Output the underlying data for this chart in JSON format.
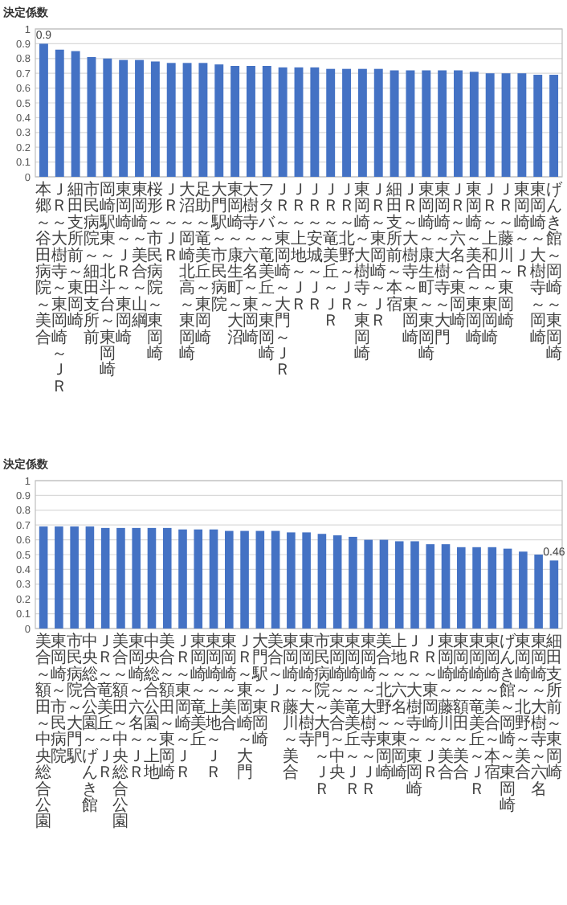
{
  "chart_data": [
    {
      "type": "bar",
      "ylabel": "決定係数",
      "categories": [
        "本郷～谷田病院～美合",
        "ＪＲ～大樹寺～東岡崎～ＪＲ",
        "細田支所前～東岡崎",
        "市民病院～細田支所前",
        "岡崎駅東～北斗台～東岡崎",
        "東岡崎～ＪＲ～東岡崎",
        "東岡崎～美合～山綱",
        "桜形～市民病院～東岡崎",
        "ＪＲ～ＪＲ",
        "大沼～岡崎北高～東岡崎",
        "足助～竜美丘～東岡崎",
        "大門駅～市民病院",
        "東岡崎～康生町～大沼",
        "大樹寺～六名～東岡崎",
        "フタバ～竜美丘～東岡崎",
        "ＪＲ～東岡崎～大門～ＪＲ",
        "ＪＲ～上地～ＪＲ",
        "ＪＲ～安城～ＪＲ",
        "ＪＲ～竜美丘～ＪＲ",
        "ＪＲ～北野～ＪＲ",
        "東岡崎～大樹寺～東岡崎",
        "ＪＲ～東岡崎～ＪＲ",
        "細田支所前～本宿",
        "ＪＲ～大樹寺～東岡崎",
        "東岡崎～康生町～東岡崎",
        "東岡崎～大樹寺～大門",
        "ＪＲ～六名～東岡崎",
        "東岡崎～美合～東岡崎",
        "ＪＲ～上和田～東岡崎",
        "ＪＲ～藤川～東岡崎",
        "東岡崎～ＪＲ",
        "東岡崎～大樹寺～岡崎",
        "げんき館～岡崎～東岡崎"
      ],
      "values": [
        0.9,
        0.86,
        0.85,
        0.81,
        0.8,
        0.79,
        0.79,
        0.78,
        0.77,
        0.77,
        0.77,
        0.76,
        0.75,
        0.75,
        0.75,
        0.74,
        0.74,
        0.74,
        0.73,
        0.73,
        0.73,
        0.73,
        0.72,
        0.72,
        0.72,
        0.72,
        0.72,
        0.71,
        0.7,
        0.7,
        0.7,
        0.69,
        0.69
      ],
      "value_labels": [
        "0.9",
        null,
        null,
        null,
        null,
        null,
        null,
        null,
        null,
        null,
        null,
        null,
        null,
        null,
        null,
        null,
        null,
        null,
        null,
        null,
        null,
        null,
        null,
        null,
        null,
        null,
        null,
        null,
        null,
        null,
        null,
        null,
        null
      ],
      "color": "#4472c4",
      "ylim": [
        0,
        1
      ],
      "yticks": [
        0,
        0.1,
        0.2,
        0.3,
        0.4,
        0.5,
        0.6,
        0.7,
        0.8,
        0.9,
        1
      ],
      "grid": "y"
    },
    {
      "type": "bar",
      "ylabel": "決定係数",
      "categories": [
        "美合～額田～中央総合公園",
        "東岡崎～市民病院",
        "市民病院～大門駅",
        "中央総合公園～げんき館",
        "ＪＲ～竜美丘～ＪＲ",
        "美合～額田～中央総合公園",
        "東岡崎～六名～ＪＲ",
        "中央総合公園～上地",
        "美合～額田～東岡崎",
        "ＪＲ～東岡崎～ＪＲ",
        "東岡崎～竜美丘",
        "東岡崎～上地～ＪＲ",
        "東岡崎～美合",
        "ＪＲ～東岡崎～大門",
        "大門駅～東岡崎",
        "美合～ＪＲ",
        "東岡崎～藤川～美合",
        "東岡崎～大樹寺",
        "市民病院～大門～ＪＲ",
        "東岡崎～美合～中央",
        "東岡崎～竜美丘～ＪＲ",
        "東岡崎～大樹寺～ＪＲ",
        "美合～北野～東岡崎",
        "上地～六名～東岡崎",
        "ＪＲ～大樹寺～東岡崎",
        "ＪＲ～東岡崎～ＪＲ",
        "東岡崎～藤川～美合",
        "東岡崎～額田～美合",
        "東岡崎～竜美丘～ＪＲ",
        "東岡崎～美合～本宿",
        "げんき館～岡崎～東岡崎",
        "東岡崎～北野～美合",
        "東岡崎～大樹寺～六名",
        "細田支所前～東岡崎"
      ],
      "values": [
        0.69,
        0.69,
        0.69,
        0.69,
        0.68,
        0.68,
        0.68,
        0.68,
        0.68,
        0.67,
        0.67,
        0.67,
        0.66,
        0.66,
        0.66,
        0.66,
        0.65,
        0.65,
        0.64,
        0.63,
        0.62,
        0.6,
        0.6,
        0.59,
        0.59,
        0.57,
        0.57,
        0.55,
        0.55,
        0.55,
        0.54,
        0.52,
        0.5,
        0.46
      ],
      "value_labels": [
        null,
        null,
        null,
        null,
        null,
        null,
        null,
        null,
        null,
        null,
        null,
        null,
        null,
        null,
        null,
        null,
        null,
        null,
        null,
        null,
        null,
        null,
        null,
        null,
        null,
        null,
        null,
        null,
        null,
        null,
        null,
        null,
        null,
        "0.46"
      ],
      "color": "#4472c4",
      "ylim": [
        0,
        1
      ],
      "yticks": [
        0,
        0.1,
        0.2,
        0.3,
        0.4,
        0.5,
        0.6,
        0.7,
        0.8,
        0.9,
        1
      ],
      "grid": "y"
    }
  ]
}
